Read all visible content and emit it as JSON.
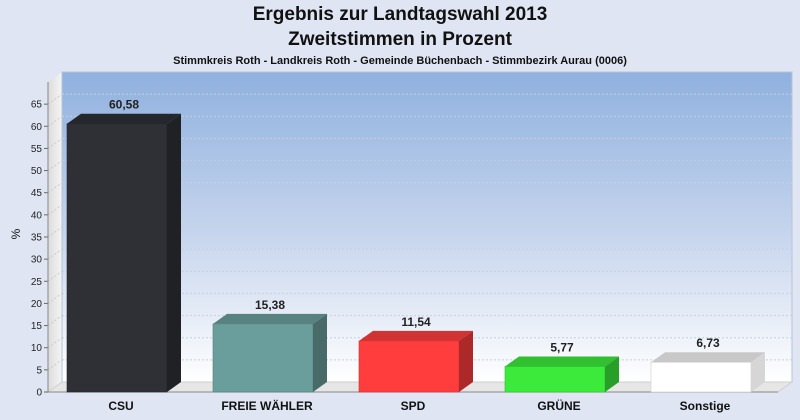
{
  "chart_data": {
    "type": "bar",
    "title": "Ergebnis zur Landtagswahl 2013",
    "subtitle": "Zweitstimmen in Prozent",
    "caption": "Stimmkreis Roth - Landkreis Roth - Gemeinde Büchenbach - Stimmbezirk Aurau (0006)",
    "ylabel": "%",
    "ylim": [
      0,
      70
    ],
    "yticks": [
      0,
      5,
      10,
      15,
      20,
      25,
      30,
      35,
      40,
      45,
      50,
      55,
      60,
      65
    ],
    "grid": true,
    "categories": [
      "CSU",
      "FREIE WÄHLER",
      "SPD",
      "GRÜNE",
      "Sonstige"
    ],
    "values": [
      60.58,
      15.38,
      11.54,
      5.77,
      6.73
    ],
    "value_labels": [
      "60,58",
      "15,38",
      "11,54",
      "5,77",
      "6,73"
    ],
    "colors": [
      "#2e3036",
      "#6a9e9c",
      "#ff3d3d",
      "#3bea3b",
      "#ffffff"
    ]
  }
}
